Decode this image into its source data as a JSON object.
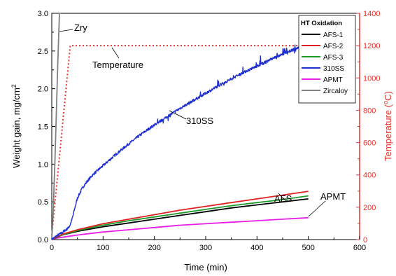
{
  "chart_data": {
    "type": "line",
    "xlabel": "Time (min)",
    "ylabel": "Weight gain, mg/cm",
    "ylabel_sup": "2",
    "y2label_pre": "Temperature (",
    "y2label_sup": "o",
    "y2label_post": "C)",
    "xlim": [
      0,
      600
    ],
    "ylim": [
      0,
      3.0
    ],
    "y2lim": [
      0,
      1400
    ],
    "x_ticks": [
      "0",
      "100",
      "200",
      "300",
      "400",
      "500",
      "600"
    ],
    "y_ticks": [
      "0.0",
      "0.5",
      "1.0",
      "1.5",
      "2.0",
      "2.5",
      "3.0"
    ],
    "y2_ticks": [
      "0",
      "200",
      "400",
      "600",
      "800",
      "1000",
      "1200",
      "1400"
    ],
    "legend": {
      "title": "HT Oxidation",
      "position": "top-right",
      "entries": [
        "AFS-1",
        "AFS-2",
        "AFS-3",
        "310SS",
        "APMT",
        "Zircaloy"
      ]
    },
    "annotations": [
      {
        "text": "Zry",
        "target": "Zircaloy"
      },
      {
        "text": "Temperature",
        "target": "Temperature"
      },
      {
        "text": "310SS",
        "target": "310SS"
      },
      {
        "text": "AFS",
        "target": "AFS-2"
      },
      {
        "text": "APMT",
        "target": "APMT"
      }
    ],
    "series": [
      {
        "name": "Zircaloy",
        "axis": "left",
        "color": "#808080",
        "x": [
          0,
          3,
          6,
          9,
          12,
          15,
          18
        ],
        "y": [
          0,
          0.4,
          1.0,
          1.7,
          2.4,
          3.0,
          3.0
        ]
      },
      {
        "name": "Temperature",
        "axis": "right",
        "color": "#e8322a",
        "dashed": true,
        "x": [
          0,
          36,
          500
        ],
        "y": [
          25,
          1200,
          1200
        ]
      },
      {
        "name": "310SS",
        "axis": "left",
        "color": "#1f2fd0",
        "noisy": true,
        "x": [
          0,
          10,
          20,
          25,
          30,
          35,
          40,
          45,
          50,
          60,
          70,
          80,
          100,
          125,
          150,
          175,
          200,
          225,
          250,
          275,
          300,
          325,
          350,
          375,
          400,
          425,
          450,
          475,
          495
        ],
        "y": [
          0,
          0.05,
          0.09,
          0.12,
          0.14,
          0.18,
          0.28,
          0.42,
          0.55,
          0.69,
          0.78,
          0.86,
          0.98,
          1.13,
          1.27,
          1.4,
          1.52,
          1.63,
          1.74,
          1.84,
          1.94,
          2.04,
          2.13,
          2.22,
          2.3,
          2.38,
          2.46,
          2.53,
          2.59
        ]
      },
      {
        "name": "AFS-1",
        "axis": "left",
        "color": "#000000",
        "x": [
          0,
          20,
          50,
          100,
          150,
          200,
          250,
          300,
          350,
          400,
          450,
          500
        ],
        "y": [
          0,
          0.06,
          0.11,
          0.17,
          0.22,
          0.27,
          0.32,
          0.37,
          0.42,
          0.46,
          0.5,
          0.54
        ]
      },
      {
        "name": "AFS-2",
        "axis": "left",
        "color": "#e02020",
        "x": [
          0,
          20,
          50,
          100,
          150,
          200,
          250,
          300,
          350,
          400,
          450,
          500
        ],
        "y": [
          0,
          0.07,
          0.13,
          0.21,
          0.27,
          0.33,
          0.39,
          0.44,
          0.49,
          0.54,
          0.59,
          0.64
        ]
      },
      {
        "name": "AFS-3",
        "axis": "left",
        "color": "#1d9a2a",
        "x": [
          0,
          20,
          50,
          100,
          150,
          200,
          250,
          300,
          350,
          400,
          450,
          500
        ],
        "y": [
          0,
          0.06,
          0.12,
          0.19,
          0.25,
          0.3,
          0.35,
          0.4,
          0.45,
          0.49,
          0.53,
          0.58
        ]
      },
      {
        "name": "APMT",
        "axis": "left",
        "color": "#e81ee8",
        "x": [
          0,
          10,
          30,
          50,
          100,
          150,
          200,
          250,
          300,
          350,
          400,
          450,
          500
        ],
        "y": [
          0,
          0.02,
          0.04,
          0.06,
          0.1,
          0.13,
          0.16,
          0.19,
          0.21,
          0.23,
          0.25,
          0.27,
          0.29
        ]
      }
    ]
  },
  "colors": {
    "temperature_axis": "#e8322a"
  }
}
